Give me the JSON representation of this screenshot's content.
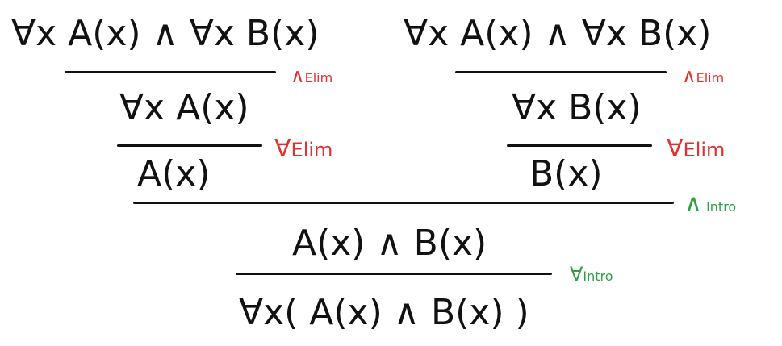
{
  "proof": {
    "premise_left": "∀x A(x) ∧ ∀x B(x)",
    "premise_right": "∀x A(x) ∧ ∀x B(x)",
    "step_forall_a": "∀x A(x)",
    "step_forall_b": "∀x B(x)",
    "step_a": "A(x)",
    "step_b": "B(x)",
    "step_conj": "A(x) ∧ B(x)",
    "conclusion": "∀x( A(x) ∧ B(x) )"
  },
  "rules": {
    "and_elim_left": {
      "symbol": "∧",
      "name": "Elim"
    },
    "and_elim_right": {
      "symbol": "∧",
      "name": "Elim"
    },
    "forall_elim_left": {
      "symbol": "∀",
      "name": "Elim"
    },
    "forall_elim_right": {
      "symbol": "∀",
      "name": "Elim"
    },
    "and_intro": {
      "symbol": "∧",
      "name": "Intro"
    },
    "forall_intro": {
      "symbol": "∀",
      "name": "Intro"
    }
  },
  "colors": {
    "formula": "#111111",
    "elim": "#e03131",
    "intro": "#2f9e44"
  }
}
